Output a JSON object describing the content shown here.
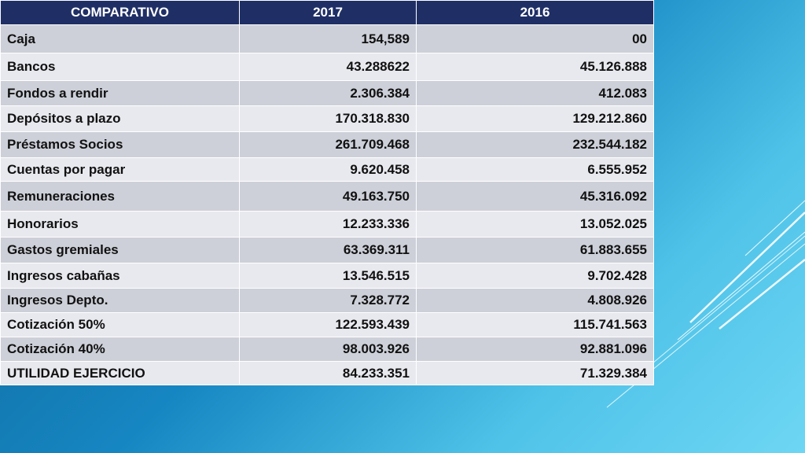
{
  "table": {
    "headers": [
      "COMPARATIVO",
      "2017",
      "2016"
    ],
    "rows": [
      {
        "label": "Caja",
        "y2017": "154,589",
        "y2016": "00"
      },
      {
        "label": "Bancos",
        "y2017": "43.288622",
        "y2016": "45.126.888"
      },
      {
        "label": "Fondos a rendir",
        "y2017": "2.306.384",
        "y2016": "412.083"
      },
      {
        "label": "Depósitos a plazo",
        "y2017": "170.318.830",
        "y2016": "129.212.860"
      },
      {
        "label": "Préstamos  Socios",
        "y2017": "261.709.468",
        "y2016": "232.544.182"
      },
      {
        "label": "Cuentas por pagar",
        "y2017": "9.620.458",
        "y2016": "6.555.952"
      },
      {
        "label": "Remuneraciones",
        "y2017": "49.163.750",
        "y2016": "45.316.092"
      },
      {
        "label": "Honorarios",
        "y2017": "12.233.336",
        "y2016": "13.052.025"
      },
      {
        "label": "Gastos gremiales",
        "y2017": "63.369.311",
        "y2016": "61.883.655"
      },
      {
        "label": "Ingresos cabañas",
        "y2017": "13.546.515",
        "y2016": "9.702.428"
      },
      {
        "label": "Ingresos Depto.",
        "y2017": "7.328.772",
        "y2016": "4.808.926"
      },
      {
        "label": "Cotización 50%",
        "y2017": "122.593.439",
        "y2016": "115.741.563"
      },
      {
        "label": "Cotización 40%",
        "y2017": "98.003.926",
        "y2016": "92.881.096"
      },
      {
        "label": "UTILIDAD EJERCICIO",
        "y2017": "84.233.351",
        "y2016": "71.329.384"
      }
    ]
  },
  "colors": {
    "header_bg": "#1f2f66",
    "row_odd": "#cdd0d8",
    "row_even": "#e8e9ee",
    "background_dark": "#0d5f8f",
    "background_light": "#6ed6f4"
  }
}
